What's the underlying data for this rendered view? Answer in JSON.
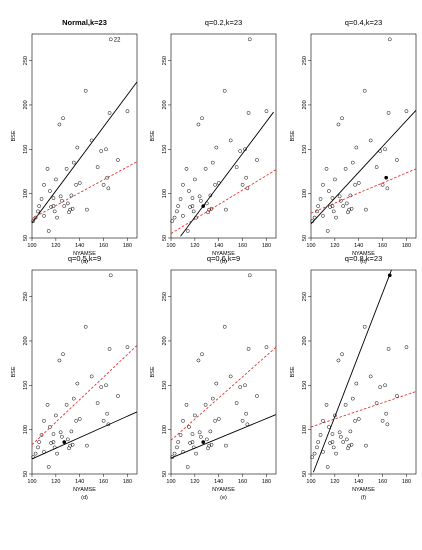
{
  "figure": {
    "x_ticks": [
      100,
      120,
      140,
      160,
      180
    ],
    "y_ticks": [
      50,
      100,
      150,
      200,
      250
    ],
    "xlabel": "NYAMSE",
    "ylabel": "BSE",
    "xlim": [
      100,
      188
    ],
    "ylim": [
      50,
      280
    ],
    "colors": {
      "points": "#000000",
      "solid_line": "#000000",
      "dashed_line": "#e0201b"
    }
  },
  "chart_data": [
    {
      "type": "scatter",
      "title": "Normal,k=23",
      "subtitle": "(a)",
      "title_bold": true,
      "xlabel": "NYAMSE",
      "ylabel": "BSE",
      "xlim": [
        100,
        188
      ],
      "ylim": [
        50,
        280
      ],
      "points": [
        [
          101,
          69
        ],
        [
          103,
          73
        ],
        [
          105,
          80
        ],
        [
          106,
          86
        ],
        [
          108,
          94
        ],
        [
          110,
          110
        ],
        [
          110,
          75
        ],
        [
          113,
          128
        ],
        [
          114,
          58
        ],
        [
          115,
          103
        ],
        [
          116,
          85
        ],
        [
          118,
          95
        ],
        [
          118,
          86
        ],
        [
          119,
          80
        ],
        [
          120,
          116
        ],
        [
          121,
          73
        ],
        [
          123,
          178
        ],
        [
          124,
          97
        ],
        [
          125,
          92
        ],
        [
          126,
          185
        ],
        [
          127,
          86
        ],
        [
          129,
          128
        ],
        [
          130,
          89
        ],
        [
          131,
          79
        ],
        [
          132,
          82
        ],
        [
          133,
          98
        ],
        [
          134,
          83
        ],
        [
          135,
          135
        ],
        [
          137,
          110
        ],
        [
          138,
          152
        ],
        [
          140,
          112
        ],
        [
          145,
          216
        ],
        [
          146,
          82
        ],
        [
          150,
          160
        ],
        [
          155,
          130
        ],
        [
          158,
          148
        ],
        [
          160,
          110
        ],
        [
          162,
          150
        ],
        [
          163,
          118
        ],
        [
          164,
          106
        ],
        [
          165,
          191
        ],
        [
          166,
          274
        ],
        [
          172,
          138
        ],
        [
          180,
          193
        ]
      ],
      "annotation": {
        "text": "22",
        "x": 166,
        "y": 274
      },
      "highlight_point": null,
      "solid_line": [
        [
          100,
          67
        ],
        [
          188,
          226
        ]
      ],
      "dashed_line": [
        [
          100,
          72
        ],
        [
          188,
          136
        ]
      ]
    },
    {
      "type": "scatter",
      "title": "q=0.2,k=23",
      "subtitle": "(b)",
      "title_bold": false,
      "xlabel": "NYAMSE",
      "ylabel": "BSE",
      "xlim": [
        100,
        188
      ],
      "ylim": [
        50,
        280
      ],
      "points": [
        [
          101,
          69
        ],
        [
          103,
          73
        ],
        [
          105,
          80
        ],
        [
          106,
          86
        ],
        [
          108,
          94
        ],
        [
          110,
          110
        ],
        [
          110,
          75
        ],
        [
          113,
          128
        ],
        [
          114,
          58
        ],
        [
          115,
          103
        ],
        [
          116,
          85
        ],
        [
          118,
          95
        ],
        [
          118,
          86
        ],
        [
          119,
          80
        ],
        [
          120,
          116
        ],
        [
          121,
          73
        ],
        [
          123,
          178
        ],
        [
          124,
          97
        ],
        [
          125,
          92
        ],
        [
          126,
          185
        ],
        [
          127,
          86
        ],
        [
          129,
          128
        ],
        [
          130,
          89
        ],
        [
          131,
          79
        ],
        [
          132,
          82
        ],
        [
          133,
          98
        ],
        [
          134,
          83
        ],
        [
          135,
          135
        ],
        [
          137,
          110
        ],
        [
          138,
          152
        ],
        [
          140,
          112
        ],
        [
          145,
          216
        ],
        [
          146,
          82
        ],
        [
          150,
          160
        ],
        [
          155,
          130
        ],
        [
          158,
          148
        ],
        [
          160,
          110
        ],
        [
          162,
          150
        ],
        [
          163,
          118
        ],
        [
          164,
          106
        ],
        [
          165,
          191
        ],
        [
          166,
          274
        ],
        [
          172,
          138
        ],
        [
          180,
          193
        ]
      ],
      "annotation": null,
      "highlight_point": [
        127,
        86
      ],
      "solid_line": [
        [
          108,
          52
        ],
        [
          186,
          192
        ]
      ],
      "dashed_line": [
        [
          100,
          55
        ],
        [
          188,
          127
        ]
      ]
    },
    {
      "type": "scatter",
      "title": "q=0.4,k=23",
      "subtitle": "(c)",
      "title_bold": false,
      "xlabel": "NYAMSE",
      "ylabel": "BSE",
      "xlim": [
        100,
        188
      ],
      "ylim": [
        50,
        280
      ],
      "points": [
        [
          101,
          69
        ],
        [
          103,
          73
        ],
        [
          105,
          80
        ],
        [
          106,
          86
        ],
        [
          108,
          94
        ],
        [
          110,
          110
        ],
        [
          110,
          75
        ],
        [
          113,
          128
        ],
        [
          114,
          58
        ],
        [
          115,
          103
        ],
        [
          116,
          85
        ],
        [
          118,
          95
        ],
        [
          118,
          86
        ],
        [
          119,
          80
        ],
        [
          120,
          116
        ],
        [
          121,
          73
        ],
        [
          123,
          178
        ],
        [
          124,
          97
        ],
        [
          125,
          92
        ],
        [
          126,
          185
        ],
        [
          127,
          86
        ],
        [
          129,
          128
        ],
        [
          130,
          89
        ],
        [
          131,
          79
        ],
        [
          132,
          82
        ],
        [
          133,
          98
        ],
        [
          134,
          83
        ],
        [
          135,
          135
        ],
        [
          137,
          110
        ],
        [
          138,
          152
        ],
        [
          140,
          112
        ],
        [
          145,
          216
        ],
        [
          146,
          82
        ],
        [
          150,
          160
        ],
        [
          155,
          130
        ],
        [
          158,
          148
        ],
        [
          160,
          110
        ],
        [
          162,
          150
        ],
        [
          163,
          118
        ],
        [
          164,
          106
        ],
        [
          165,
          191
        ],
        [
          166,
          274
        ],
        [
          172,
          138
        ],
        [
          180,
          193
        ]
      ],
      "annotation": null,
      "highlight_point": [
        163,
        118
      ],
      "solid_line": [
        [
          100,
          66
        ],
        [
          188,
          194
        ]
      ],
      "dashed_line": [
        [
          100,
          78
        ],
        [
          188,
          128
        ]
      ]
    },
    {
      "type": "scatter",
      "title": "q=0.5,k=9",
      "subtitle": "(d)",
      "title_bold": false,
      "xlabel": "NYAMSE",
      "ylabel": "BSE",
      "xlim": [
        100,
        188
      ],
      "ylim": [
        50,
        280
      ],
      "points": [
        [
          101,
          69
        ],
        [
          103,
          73
        ],
        [
          105,
          80
        ],
        [
          106,
          86
        ],
        [
          108,
          94
        ],
        [
          110,
          110
        ],
        [
          110,
          75
        ],
        [
          113,
          128
        ],
        [
          114,
          58
        ],
        [
          115,
          103
        ],
        [
          116,
          85
        ],
        [
          118,
          95
        ],
        [
          118,
          86
        ],
        [
          119,
          80
        ],
        [
          120,
          116
        ],
        [
          121,
          73
        ],
        [
          123,
          178
        ],
        [
          124,
          97
        ],
        [
          125,
          92
        ],
        [
          126,
          185
        ],
        [
          127,
          86
        ],
        [
          129,
          128
        ],
        [
          130,
          89
        ],
        [
          131,
          79
        ],
        [
          132,
          82
        ],
        [
          133,
          98
        ],
        [
          134,
          83
        ],
        [
          135,
          135
        ],
        [
          137,
          110
        ],
        [
          138,
          152
        ],
        [
          140,
          112
        ],
        [
          145,
          216
        ],
        [
          146,
          82
        ],
        [
          150,
          160
        ],
        [
          155,
          130
        ],
        [
          158,
          148
        ],
        [
          160,
          110
        ],
        [
          162,
          150
        ],
        [
          163,
          118
        ],
        [
          164,
          106
        ],
        [
          165,
          191
        ],
        [
          166,
          274
        ],
        [
          172,
          138
        ],
        [
          180,
          193
        ]
      ],
      "annotation": null,
      "highlight_point": [
        127,
        86
      ],
      "solid_line": [
        [
          100,
          67
        ],
        [
          188,
          120
        ]
      ],
      "dashed_line": [
        [
          100,
          83
        ],
        [
          188,
          195
        ]
      ]
    },
    {
      "type": "scatter",
      "title": "q=0.6,k=9",
      "subtitle": "(e)",
      "title_bold": false,
      "xlabel": "NYAMSE",
      "ylabel": "BSE",
      "xlim": [
        100,
        188
      ],
      "ylim": [
        50,
        280
      ],
      "points": [
        [
          101,
          69
        ],
        [
          103,
          73
        ],
        [
          105,
          80
        ],
        [
          106,
          86
        ],
        [
          108,
          94
        ],
        [
          110,
          110
        ],
        [
          110,
          75
        ],
        [
          113,
          128
        ],
        [
          114,
          58
        ],
        [
          115,
          103
        ],
        [
          116,
          85
        ],
        [
          118,
          95
        ],
        [
          118,
          86
        ],
        [
          119,
          80
        ],
        [
          120,
          116
        ],
        [
          121,
          73
        ],
        [
          123,
          178
        ],
        [
          124,
          97
        ],
        [
          125,
          92
        ],
        [
          126,
          185
        ],
        [
          127,
          86
        ],
        [
          129,
          128
        ],
        [
          130,
          89
        ],
        [
          131,
          79
        ],
        [
          132,
          82
        ],
        [
          133,
          98
        ],
        [
          134,
          83
        ],
        [
          135,
          135
        ],
        [
          137,
          110
        ],
        [
          138,
          152
        ],
        [
          140,
          112
        ],
        [
          145,
          216
        ],
        [
          146,
          82
        ],
        [
          150,
          160
        ],
        [
          155,
          130
        ],
        [
          158,
          148
        ],
        [
          160,
          110
        ],
        [
          162,
          150
        ],
        [
          163,
          118
        ],
        [
          164,
          106
        ],
        [
          165,
          191
        ],
        [
          166,
          274
        ],
        [
          172,
          138
        ],
        [
          180,
          193
        ]
      ],
      "annotation": null,
      "highlight_point": [
        127,
        86
      ],
      "solid_line": [
        [
          100,
          68
        ],
        [
          188,
          117
        ]
      ],
      "dashed_line": [
        [
          100,
          88
        ],
        [
          188,
          193
        ]
      ]
    },
    {
      "type": "scatter",
      "title": "q=0.8,k=23",
      "subtitle": "(f)",
      "title_bold": false,
      "xlabel": "NYAMSE",
      "ylabel": "BSE",
      "xlim": [
        100,
        188
      ],
      "ylim": [
        50,
        280
      ],
      "points": [
        [
          101,
          69
        ],
        [
          103,
          73
        ],
        [
          105,
          80
        ],
        [
          106,
          86
        ],
        [
          108,
          94
        ],
        [
          110,
          110
        ],
        [
          110,
          75
        ],
        [
          113,
          128
        ],
        [
          114,
          58
        ],
        [
          115,
          103
        ],
        [
          116,
          85
        ],
        [
          118,
          95
        ],
        [
          118,
          86
        ],
        [
          119,
          80
        ],
        [
          120,
          116
        ],
        [
          121,
          73
        ],
        [
          123,
          178
        ],
        [
          124,
          97
        ],
        [
          125,
          92
        ],
        [
          126,
          185
        ],
        [
          127,
          86
        ],
        [
          129,
          128
        ],
        [
          130,
          89
        ],
        [
          131,
          79
        ],
        [
          132,
          82
        ],
        [
          133,
          98
        ],
        [
          134,
          83
        ],
        [
          135,
          135
        ],
        [
          137,
          110
        ],
        [
          138,
          152
        ],
        [
          140,
          112
        ],
        [
          145,
          216
        ],
        [
          146,
          82
        ],
        [
          150,
          160
        ],
        [
          155,
          130
        ],
        [
          158,
          148
        ],
        [
          160,
          110
        ],
        [
          162,
          150
        ],
        [
          163,
          118
        ],
        [
          164,
          106
        ],
        [
          165,
          191
        ],
        [
          166,
          274
        ],
        [
          172,
          138
        ],
        [
          180,
          193
        ]
      ],
      "annotation": null,
      "highlight_point": [
        166,
        274
      ],
      "solid_line": [
        [
          102,
          52
        ],
        [
          168,
          282
        ]
      ],
      "dashed_line": [
        [
          100,
          103
        ],
        [
          188,
          143
        ]
      ]
    }
  ]
}
